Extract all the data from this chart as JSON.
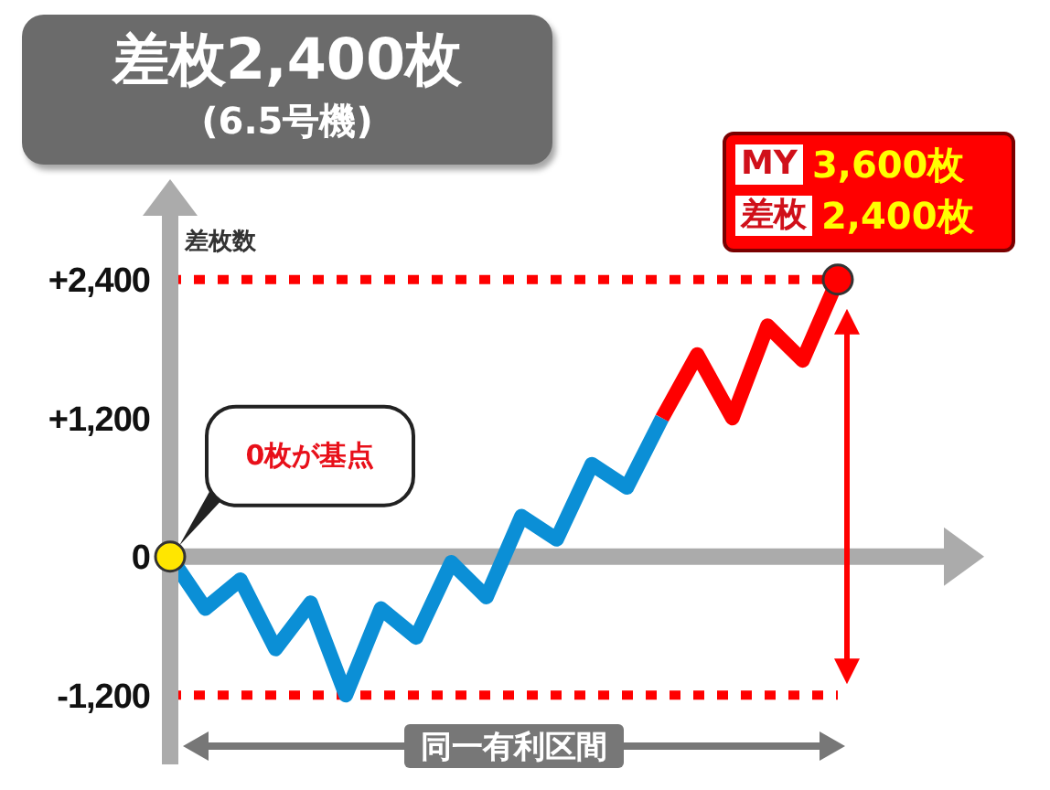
{
  "chart_data": {
    "type": "line",
    "title": "差枚2,400枚",
    "subtitle": "(6.5号機)",
    "ylabel": "差枚数",
    "categories": [
      null,
      null,
      null,
      null,
      null,
      null,
      null,
      null,
      null,
      null,
      null,
      null,
      null,
      null,
      null,
      null,
      null,
      null,
      null,
      null
    ],
    "series": [
      {
        "color": "#0b8fd6",
        "values": [
          0,
          -450,
          -200,
          -800,
          -400,
          -1200,
          -450,
          -700,
          -50,
          -350,
          350,
          150,
          800,
          600,
          1200,
          null,
          null,
          null,
          null,
          null
        ]
      },
      {
        "color": "#ff0000",
        "values": [
          null,
          null,
          null,
          null,
          null,
          null,
          null,
          null,
          null,
          null,
          null,
          null,
          null,
          null,
          1200,
          1750,
          1200,
          2000,
          1700,
          2400
        ]
      },
      {
        "type": "scatter",
        "values": [
          0,
          null,
          null,
          null,
          null,
          null,
          null,
          null,
          null,
          null,
          null,
          null,
          null,
          null,
          null,
          null,
          null,
          null,
          null,
          2400
        ],
        "colors": [
          "#ffe600",
          null,
          null,
          null,
          null,
          null,
          null,
          null,
          null,
          null,
          null,
          null,
          null,
          null,
          null,
          null,
          null,
          null,
          null,
          "#ff0000"
        ]
      }
    ],
    "ylim": [
      -1800,
      3000
    ],
    "yticks": [
      {
        "value": 2400,
        "label": "+2,400"
      },
      {
        "value": 1200,
        "label": "+1,200"
      },
      0,
      {
        "value": -1200,
        "label": "-1,200"
      }
    ],
    "tick_labels": "y",
    "ref_lines": [
      {
        "axis": "y",
        "value": 2400,
        "color": "#ff0000",
        "line_style": "dotted"
      },
      {
        "axis": "y",
        "value": -1200,
        "color": "#ff0000",
        "line_style": "dotted"
      }
    ],
    "annotations": [
      "0枚が基点",
      "MY",
      "3,600枚",
      "差枚",
      "2,400枚",
      "同一有利区間"
    ]
  }
}
